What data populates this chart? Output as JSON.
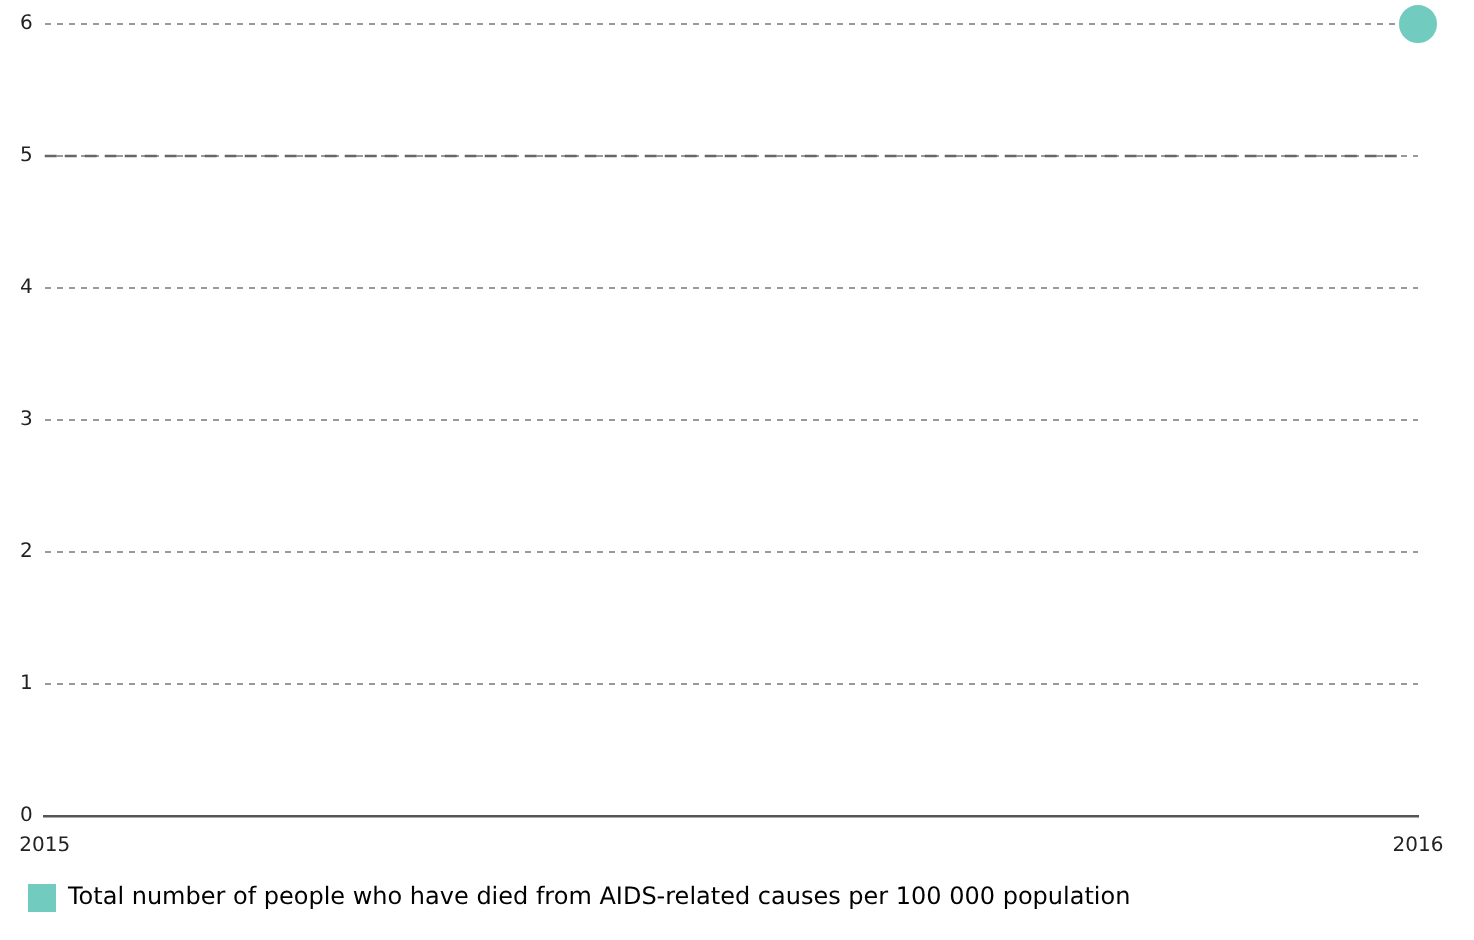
{
  "chart_data": {
    "type": "line",
    "x": [
      2016
    ],
    "series": [
      {
        "name": "Total number of people who have died from AIDS-related causes per 100 000 population",
        "color": "#72cbbf",
        "values": [
          6
        ]
      }
    ],
    "xlim": [
      2015,
      2016
    ],
    "xticks": [
      2015,
      2016
    ],
    "ylim": [
      0,
      6
    ],
    "yticks": [
      0,
      1,
      2,
      3,
      4,
      5,
      6
    ],
    "ref_lines": [
      {
        "axis": "y",
        "value": 5,
        "color": "#666666",
        "line_style": "dashed"
      }
    ],
    "grid": "y",
    "legend": "bottom",
    "marker": "circle"
  }
}
